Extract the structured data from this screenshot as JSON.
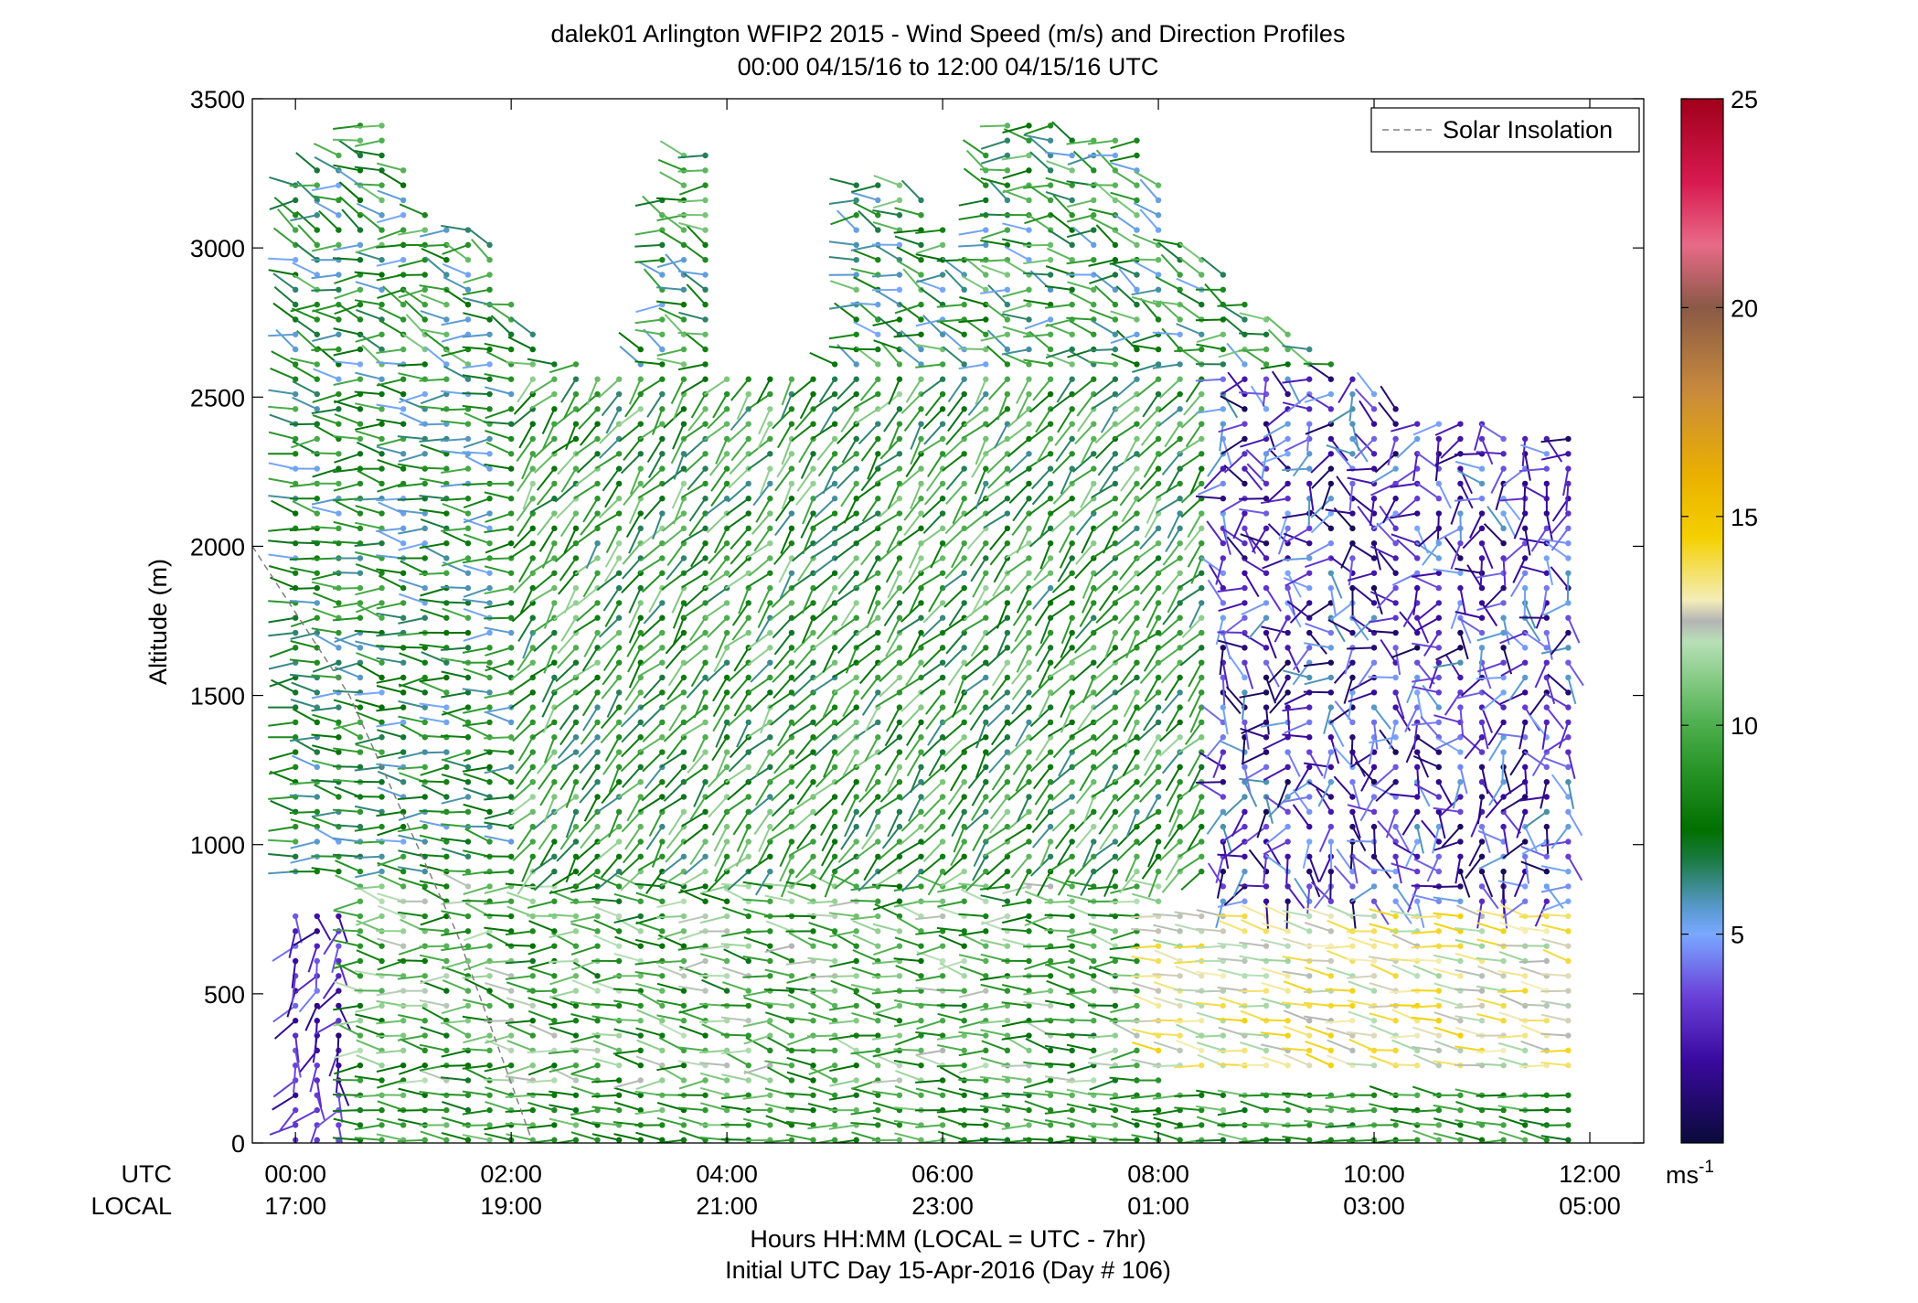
{
  "chart_data": {
    "type": "wind_barb_profile",
    "title": "dalek01 Arlington WFIP2 2015 - Wind Speed (m/s) and Direction Profiles",
    "subtitle": "00:00 04/15/16 to 12:00 04/15/16  UTC",
    "xlabel": "Hours HH:MM  (LOCAL = UTC - 7hr)",
    "xlabel2": "Initial UTC Day 15-Apr-2016 (Day # 106)",
    "ylabel": "Altitude (m)",
    "x_range_hours": [
      -0.4,
      12.5
    ],
    "ylim": [
      0,
      3500
    ],
    "yticks": [
      0,
      500,
      1000,
      1500,
      2000,
      2500,
      3000,
      3500
    ],
    "row_labels": {
      "utc": "UTC",
      "local": "LOCAL"
    },
    "xticks_hours": [
      0,
      2,
      4,
      6,
      8,
      10,
      12
    ],
    "xtick_utc_labels": [
      "00:00",
      "02:00",
      "04:00",
      "06:00",
      "08:00",
      "10:00",
      "12:00"
    ],
    "xtick_local_labels": [
      "17:00",
      "19:00",
      "21:00",
      "23:00",
      "01:00",
      "03:00",
      "05:00"
    ],
    "legend": {
      "label": "Solar Insolation",
      "position": "top-right",
      "style": "dashed",
      "color": "#808080"
    },
    "solar_insolation_line": {
      "x_hours": [
        -0.4,
        0.5,
        1.5,
        2.2
      ],
      "y_m": [
        2000,
        1500,
        700,
        0
      ]
    },
    "colorbar": {
      "range": [
        0,
        25
      ],
      "ticks": [
        5,
        10,
        15,
        20,
        25
      ],
      "unit_label": "ms",
      "unit_superscript": "-1",
      "stops": [
        {
          "value": 0,
          "color": "#0a0a3a"
        },
        {
          "value": 2,
          "color": "#3a0aa0"
        },
        {
          "value": 3.5,
          "color": "#6a40d8"
        },
        {
          "value": 5,
          "color": "#7aa8ff"
        },
        {
          "value": 5.6,
          "color": "#5a9ad0"
        },
        {
          "value": 6.2,
          "color": "#3a8a8a"
        },
        {
          "value": 6.8,
          "color": "#1a7a40"
        },
        {
          "value": 7.5,
          "color": "#007000"
        },
        {
          "value": 9,
          "color": "#2a962a"
        },
        {
          "value": 10,
          "color": "#4cae4c"
        },
        {
          "value": 11,
          "color": "#80c880"
        },
        {
          "value": 12,
          "color": "#b8e0b8"
        },
        {
          "value": 12.5,
          "color": "#b4b4b4"
        },
        {
          "value": 13,
          "color": "#f4eeb8"
        },
        {
          "value": 14.5,
          "color": "#f4d000"
        },
        {
          "value": 16,
          "color": "#eab000"
        },
        {
          "value": 18,
          "color": "#c88a3c"
        },
        {
          "value": 20,
          "color": "#8a5a46"
        },
        {
          "value": 21.5,
          "color": "#e86a88"
        },
        {
          "value": 23,
          "color": "#d81a50"
        },
        {
          "value": 25,
          "color": "#a0001a"
        }
      ]
    },
    "profile_times_hours": [
      0.0,
      0.2,
      0.4,
      0.6,
      0.8,
      1.0,
      1.2,
      1.4,
      1.6,
      1.8,
      2.0,
      2.2,
      2.4,
      2.6,
      2.8,
      3.0,
      3.2,
      3.4,
      3.6,
      3.8,
      4.0,
      4.2,
      4.4,
      4.6,
      4.8,
      5.0,
      5.2,
      5.4,
      5.6,
      5.8,
      6.0,
      6.2,
      6.4,
      6.6,
      6.8,
      7.0,
      7.2,
      7.4,
      7.6,
      7.8,
      8.0,
      8.2,
      8.4,
      8.6,
      8.8,
      9.0,
      9.2,
      9.4,
      9.6,
      9.8,
      10.0,
      10.2,
      10.4,
      10.6,
      10.8,
      11.0,
      11.2,
      11.4,
      11.6,
      11.8
    ],
    "profile_top_altitudes_m": [
      3250,
      3300,
      3350,
      3450,
      3450,
      3300,
      3150,
      3100,
      3100,
      3050,
      2850,
      2750,
      2650,
      2650,
      2600,
      2600,
      2700,
      3200,
      3350,
      3350,
      2600,
      2600,
      2600,
      2600,
      2600,
      2650,
      3250,
      3250,
      3250,
      3200,
      3100,
      3000,
      3350,
      3450,
      3450,
      3450,
      3400,
      3400,
      3400,
      3400,
      3250,
      3050,
      3000,
      2950,
      2850,
      2800,
      2750,
      2700,
      2650,
      2600,
      2550,
      2500,
      2450,
      2450,
      2450,
      2450,
      2400,
      2400,
      2400,
      2400
    ],
    "wind_regimes": [
      {
        "altitude_m": [
          0,
          250
        ],
        "speed_ms": [
          1.5,
          5.0
        ],
        "from_direction_deg": [
          180,
          260
        ],
        "hours": [
          0.0,
          0.4
        ]
      },
      {
        "altitude_m": [
          0,
          800
        ],
        "speed_ms": [
          1.0,
          4.5
        ],
        "from_direction_deg": [
          150,
          250
        ],
        "hours": [
          0.0,
          0.6
        ]
      },
      {
        "altitude_m": [
          0,
          200
        ],
        "speed_ms": [
          7.0,
          11.0
        ],
        "from_direction_deg": [
          260,
          290
        ],
        "hours": [
          0.6,
          12.0
        ]
      },
      {
        "altitude_m": [
          200,
          900
        ],
        "speed_ms": [
          7.0,
          12.5
        ],
        "from_direction_deg": [
          250,
          300
        ],
        "hours": [
          0.6,
          8.0
        ]
      },
      {
        "altitude_m": [
          250,
          800
        ],
        "speed_ms": [
          11.5,
          14.5
        ],
        "from_direction_deg": [
          265,
          295
        ],
        "hours": [
          8.0,
          12.0
        ]
      },
      {
        "altitude_m": [
          900,
          2600
        ],
        "speed_ms": [
          6.0,
          11.5
        ],
        "from_direction_deg": [
          200,
          240
        ],
        "hours": [
          2.0,
          8.5
        ]
      },
      {
        "altitude_m": [
          900,
          2600
        ],
        "speed_ms": [
          5.0,
          10.0
        ],
        "from_direction_deg": [
          250,
          300
        ],
        "hours": [
          0.0,
          2.0
        ]
      },
      {
        "altitude_m": [
          800,
          2600
        ],
        "speed_ms": [
          0.5,
          6.0
        ],
        "from_direction_deg": [
          140,
          330
        ],
        "hours": [
          8.5,
          12.0
        ]
      },
      {
        "altitude_m": [
          2600,
          3500
        ],
        "speed_ms": [
          5.0,
          11.0
        ],
        "from_direction_deg": [
          250,
          320
        ],
        "hours": [
          0.0,
          10.0
        ]
      }
    ]
  }
}
